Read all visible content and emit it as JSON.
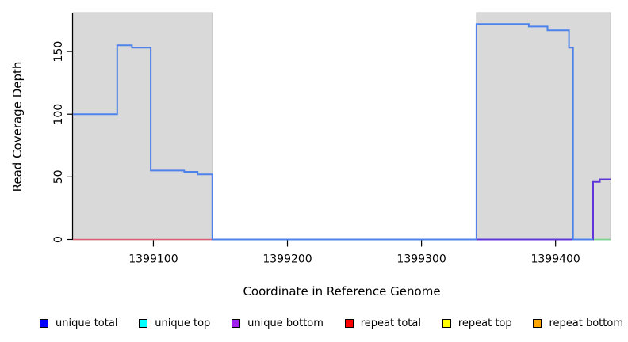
{
  "figure": {
    "background": "#ffffff"
  },
  "chart_data": {
    "type": "line",
    "subtype": "step",
    "title": "",
    "xlabel": "Coordinate in Reference Genome",
    "ylabel": "Read Coverage Depth",
    "xlim": [
      1399040,
      1399441
    ],
    "ylim": [
      0,
      181
    ],
    "xticks": [
      1399100,
      1399200,
      1399300,
      1399400
    ],
    "yticks": [
      0,
      50,
      100,
      150
    ],
    "grid": false,
    "axis_color": "#000000",
    "shaded_region_fill": "#d9d9d9",
    "shaded_region_border": "#c4c4c4",
    "shaded_regions": [
      {
        "name": "shaded-region-left",
        "x0": 1399040,
        "x1": 1399144
      },
      {
        "name": "shaded-region-right",
        "x0": 1399341,
        "x1": 1399441
      }
    ],
    "series": [
      {
        "name": "repeat total",
        "color": "#e25c72",
        "width": 1.6,
        "steps": [
          [
            1399040,
            0
          ],
          [
            1399428,
            0
          ]
        ]
      },
      {
        "name": "baseline green segment",
        "color": "#7cd492",
        "width": 1.8,
        "steps": [
          [
            1399428,
            0
          ],
          [
            1399441,
            0
          ]
        ]
      },
      {
        "name": "unique bottom",
        "color": "#6136d9",
        "width": 2,
        "steps": [
          [
            1399144,
            0
          ],
          [
            1399428,
            46
          ],
          [
            1399433,
            48
          ],
          [
            1399441,
            48
          ]
        ]
      },
      {
        "name": "unique total",
        "color": "#4d82ea",
        "width": 2,
        "steps": [
          [
            1399040,
            100
          ],
          [
            1399073,
            155
          ],
          [
            1399084,
            153
          ],
          [
            1399098,
            55
          ],
          [
            1399123,
            54
          ],
          [
            1399133,
            52
          ],
          [
            1399144,
            0
          ],
          [
            1399341,
            172
          ],
          [
            1399380,
            170
          ],
          [
            1399394,
            167
          ],
          [
            1399410,
            153
          ],
          [
            1399413,
            0
          ],
          [
            1399428,
            0
          ]
        ]
      }
    ],
    "legend": {
      "position": "bottom",
      "entries": [
        {
          "label": "unique total",
          "color": "#0000ff"
        },
        {
          "label": "unique top",
          "color": "#00ffff"
        },
        {
          "label": "unique bottom",
          "color": "#a020f0"
        },
        {
          "label": "repeat total",
          "color": "#ff0000"
        },
        {
          "label": "repeat top",
          "color": "#ffff00"
        },
        {
          "label": "repeat bottom",
          "color": "#ffa500"
        }
      ]
    }
  }
}
